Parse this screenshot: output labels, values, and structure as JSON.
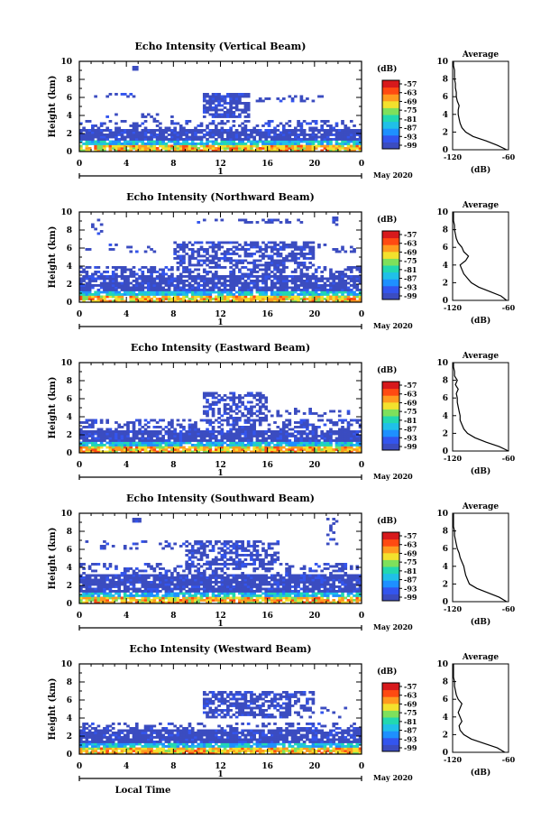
{
  "chart_data": [
    {
      "type": "heatmap",
      "title": "Echo Intensity (Vertical Beam)",
      "ylabel": "Height (km)",
      "xlim": [
        0,
        24
      ],
      "ylim": [
        0,
        10
      ],
      "x_ticks": [
        "0",
        "4",
        "8",
        "12",
        "16",
        "20",
        "0"
      ],
      "y_ticks": [
        "0",
        "2",
        "4",
        "6",
        "8",
        "10"
      ],
      "date_marker": "1",
      "date_label": "May 2020",
      "colorbar": {
        "unit": "(dB)",
        "ticks": [
          "-57",
          "-63",
          "-69",
          "-75",
          "-81",
          "-87",
          "-93",
          "-99"
        ]
      },
      "profile": {
        "title": "Average",
        "xlabel": "(dB)",
        "xlim": [
          -120,
          -60
        ],
        "x_ticks": [
          "-120",
          "-60"
        ],
        "heights": [
          0,
          0.5,
          1,
          1.5,
          2,
          2.5,
          3,
          3.5,
          4,
          4.5,
          5,
          5.5,
          6,
          6.5,
          7,
          7.5,
          8,
          8.5,
          9,
          9.5,
          10
        ],
        "values": [
          -62,
          -72,
          -84,
          -98,
          -106,
          -110,
          -112,
          -113,
          -114,
          -114,
          -113,
          -115,
          -116,
          -116,
          -117,
          -117,
          -118,
          -118,
          -118,
          -119,
          -119
        ]
      },
      "blobs": [
        {
          "x0": 0,
          "x1": 24,
          "y0": 0.2,
          "y1": 2.4,
          "d": 0.85,
          "s": 1
        },
        {
          "x0": 0,
          "x1": 24,
          "y0": 2.4,
          "y1": 3.4,
          "d": 0.3,
          "s": 2
        },
        {
          "x0": 1,
          "x1": 8,
          "y0": 3.6,
          "y1": 4.2,
          "d": 0.15,
          "s": 3
        },
        {
          "x0": 10.5,
          "x1": 14.5,
          "y0": 3.8,
          "y1": 6.5,
          "d": 0.7,
          "s": 4
        },
        {
          "x0": 14.5,
          "x1": 22,
          "y0": 5.5,
          "y1": 6.2,
          "d": 0.25,
          "s": 5
        },
        {
          "x0": 0.5,
          "x1": 5,
          "y0": 6,
          "y1": 6.5,
          "d": 0.2,
          "s": 6
        },
        {
          "x0": 4.5,
          "x1": 5,
          "y0": 9.2,
          "y1": 9.5,
          "d": 1,
          "s": 7
        }
      ]
    },
    {
      "type": "heatmap",
      "title": "Echo Intensity (Northward Beam)",
      "ylabel": "Height (km)",
      "xlim": [
        0,
        24
      ],
      "ylim": [
        0,
        10
      ],
      "x_ticks": [
        "0",
        "4",
        "8",
        "12",
        "16",
        "20",
        "0"
      ],
      "y_ticks": [
        "0",
        "2",
        "4",
        "6",
        "8",
        "10"
      ],
      "date_marker": "1",
      "date_label": "May 2020",
      "colorbar": {
        "unit": "(dB)",
        "ticks": [
          "-57",
          "-63",
          "-69",
          "-75",
          "-81",
          "-87",
          "-93",
          "-99"
        ]
      },
      "profile": {
        "title": "Average",
        "xlabel": "(dB)",
        "xlim": [
          -120,
          -60
        ],
        "x_ticks": [
          "-120",
          "-60"
        ],
        "heights": [
          0,
          0.5,
          1,
          1.5,
          2,
          2.5,
          3,
          3.5,
          4,
          4.5,
          5,
          5.5,
          6,
          6.5,
          7,
          7.5,
          8,
          8.5,
          9,
          9.5,
          10
        ],
        "values": [
          -62,
          -68,
          -80,
          -92,
          -100,
          -104,
          -108,
          -110,
          -112,
          -106,
          -103,
          -108,
          -110,
          -114,
          -116,
          -117,
          -118,
          -118,
          -119,
          -119,
          -119
        ]
      },
      "blobs": [
        {
          "x0": 0,
          "x1": 24,
          "y0": 0.2,
          "y1": 3.0,
          "d": 0.85,
          "s": 11
        },
        {
          "x0": 0,
          "x1": 24,
          "y0": 3.0,
          "y1": 4.0,
          "d": 0.45,
          "s": 12
        },
        {
          "x0": 8,
          "x1": 20,
          "y0": 4.0,
          "y1": 6.6,
          "d": 0.6,
          "s": 13
        },
        {
          "x0": 0.5,
          "x1": 7,
          "y0": 5.5,
          "y1": 6.5,
          "d": 0.2,
          "s": 14
        },
        {
          "x0": 20,
          "x1": 23.5,
          "y0": 5.5,
          "y1": 6.3,
          "d": 0.3,
          "s": 15
        },
        {
          "x0": 1,
          "x1": 2,
          "y0": 7.5,
          "y1": 9.5,
          "d": 0.2,
          "s": 16
        },
        {
          "x0": 10,
          "x1": 19,
          "y0": 8.8,
          "y1": 9.2,
          "d": 0.3,
          "s": 17
        },
        {
          "x0": 21.5,
          "x1": 22,
          "y0": 8.5,
          "y1": 9.5,
          "d": 0.8,
          "s": 18
        }
      ]
    },
    {
      "type": "heatmap",
      "title": "Echo Intensity (Eastward Beam)",
      "ylabel": "Height (km)",
      "xlim": [
        0,
        24
      ],
      "ylim": [
        0,
        10
      ],
      "x_ticks": [
        "0",
        "4",
        "8",
        "12",
        "16",
        "20",
        "0"
      ],
      "y_ticks": [
        "0",
        "2",
        "4",
        "6",
        "8",
        "10"
      ],
      "date_marker": "1",
      "date_label": "May 2020",
      "colorbar": {
        "unit": "(dB)",
        "ticks": [
          "-57",
          "-63",
          "-69",
          "-75",
          "-81",
          "-87",
          "-93",
          "-99"
        ]
      },
      "profile": {
        "title": "Average",
        "xlabel": "(dB)",
        "xlim": [
          -120,
          -60
        ],
        "x_ticks": [
          "-120",
          "-60"
        ],
        "heights": [
          0,
          0.5,
          1,
          1.5,
          2,
          2.5,
          3,
          3.5,
          4,
          4.5,
          5,
          5.5,
          6,
          6.5,
          7,
          7.5,
          8,
          8.5,
          9,
          9.5,
          10
        ],
        "values": [
          -60,
          -70,
          -84,
          -96,
          -104,
          -108,
          -110,
          -112,
          -112,
          -113,
          -114,
          -115,
          -115,
          -116,
          -114,
          -117,
          -115,
          -118,
          -118,
          -119,
          -119
        ]
      },
      "blobs": [
        {
          "x0": 0,
          "x1": 24,
          "y0": 0.2,
          "y1": 2.4,
          "d": 0.88,
          "s": 21
        },
        {
          "x0": 0,
          "x1": 24,
          "y0": 2.4,
          "y1": 3.6,
          "d": 0.4,
          "s": 22
        },
        {
          "x0": 10.5,
          "x1": 16,
          "y0": 3.6,
          "y1": 6.6,
          "d": 0.5,
          "s": 23
        },
        {
          "x0": 16,
          "x1": 23,
          "y0": 4.0,
          "y1": 5.0,
          "d": 0.2,
          "s": 24
        }
      ]
    },
    {
      "type": "heatmap",
      "title": "Echo Intensity (Southward Beam)",
      "ylabel": "Height (km)",
      "xlim": [
        0,
        24
      ],
      "ylim": [
        0,
        10
      ],
      "x_ticks": [
        "0",
        "4",
        "8",
        "12",
        "16",
        "20",
        "0"
      ],
      "y_ticks": [
        "0",
        "2",
        "4",
        "6",
        "8",
        "10"
      ],
      "date_marker": "1",
      "date_label": "May 2020",
      "colorbar": {
        "unit": "(dB)",
        "ticks": [
          "-57",
          "-63",
          "-69",
          "-75",
          "-81",
          "-87",
          "-93",
          "-99"
        ]
      },
      "profile": {
        "title": "Average",
        "xlabel": "(dB)",
        "xlim": [
          -120,
          -60
        ],
        "x_ticks": [
          "-120",
          "-60"
        ],
        "heights": [
          0,
          0.5,
          1,
          1.5,
          2,
          2.5,
          3,
          3.5,
          4,
          4.5,
          5,
          5.5,
          6,
          6.5,
          7,
          7.5,
          8,
          8.5,
          9,
          9.5,
          10
        ],
        "values": [
          -62,
          -70,
          -82,
          -94,
          -102,
          -104,
          -106,
          -107,
          -108,
          -110,
          -112,
          -113,
          -115,
          -116,
          -117,
          -118,
          -118,
          -119,
          -119,
          -119,
          -119
        ]
      },
      "blobs": [
        {
          "x0": 0,
          "x1": 24,
          "y0": 0.2,
          "y1": 3.2,
          "d": 0.88,
          "s": 31
        },
        {
          "x0": 0,
          "x1": 24,
          "y0": 3.2,
          "y1": 4.4,
          "d": 0.4,
          "s": 32
        },
        {
          "x0": 9,
          "x1": 17,
          "y0": 4.4,
          "y1": 7.0,
          "d": 0.55,
          "s": 33
        },
        {
          "x0": 0.5,
          "x1": 9,
          "y0": 6,
          "y1": 7,
          "d": 0.2,
          "s": 34
        },
        {
          "x0": 21,
          "x1": 22,
          "y0": 6.5,
          "y1": 9.5,
          "d": 0.35,
          "s": 35
        },
        {
          "x0": 4.5,
          "x1": 5.2,
          "y0": 9.2,
          "y1": 9.5,
          "d": 1,
          "s": 36
        }
      ]
    },
    {
      "type": "heatmap",
      "title": "Echo Intensity (Westward Beam)",
      "ylabel": "Height (km)",
      "xlabel": "Local Time",
      "xlim": [
        0,
        24
      ],
      "ylim": [
        0,
        10
      ],
      "x_ticks": [
        "0",
        "4",
        "8",
        "12",
        "16",
        "20",
        "0"
      ],
      "y_ticks": [
        "0",
        "2",
        "4",
        "6",
        "8",
        "10"
      ],
      "date_marker": "1",
      "date_label": "May 2020",
      "colorbar": {
        "unit": "(dB)",
        "ticks": [
          "-57",
          "-63",
          "-69",
          "-75",
          "-81",
          "-87",
          "-93",
          "-99"
        ]
      },
      "profile": {
        "title": "Average",
        "xlabel": "(dB)",
        "xlim": [
          -120,
          -60
        ],
        "x_ticks": [
          "-120",
          "-60"
        ],
        "heights": [
          0,
          0.5,
          1,
          1.5,
          2,
          2.5,
          3,
          3.5,
          4,
          4.5,
          5,
          5.5,
          6,
          6.5,
          7,
          7.5,
          8,
          8.5,
          9,
          9.5,
          10
        ],
        "values": [
          -64,
          -72,
          -86,
          -100,
          -108,
          -112,
          -113,
          -110,
          -112,
          -114,
          -112,
          -110,
          -114,
          -116,
          -117,
          -118,
          -118,
          -119,
          -119,
          -119,
          -119
        ]
      },
      "blobs": [
        {
          "x0": 0,
          "x1": 24,
          "y0": 0.2,
          "y1": 2.6,
          "d": 0.88,
          "s": 41
        },
        {
          "x0": 0,
          "x1": 24,
          "y0": 2.6,
          "y1": 3.4,
          "d": 0.35,
          "s": 42
        },
        {
          "x0": 10.5,
          "x1": 20,
          "y0": 4.0,
          "y1": 6.8,
          "d": 0.55,
          "s": 43
        },
        {
          "x0": 20,
          "x1": 23,
          "y0": 4.0,
          "y1": 5.2,
          "d": 0.2,
          "s": 44
        }
      ]
    }
  ],
  "colors": {
    "background": "#ffffff",
    "axes": "#000000",
    "scale": [
      "#3b4cc0",
      "#3355ee",
      "#1e90ff",
      "#20c0e8",
      "#22d8b0",
      "#7ee05c",
      "#f3e12d",
      "#ff9a1f",
      "#ff4a12",
      "#d7191c"
    ]
  }
}
